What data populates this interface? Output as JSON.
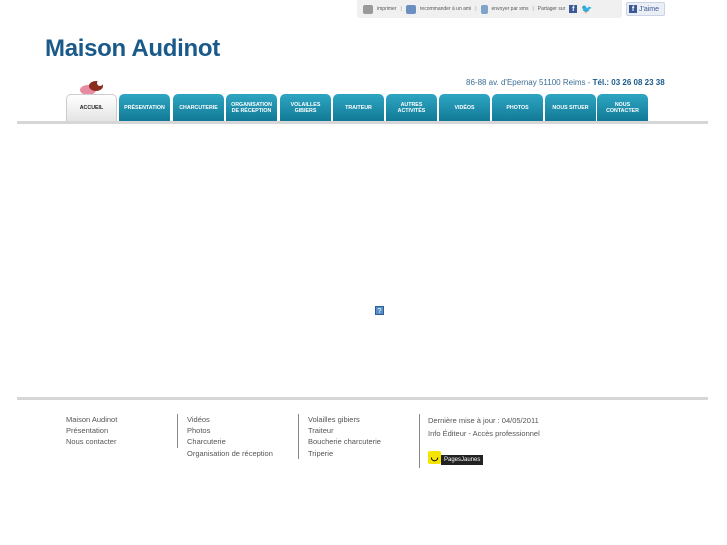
{
  "toolbar": {
    "print": "imprimer",
    "recommend": "recommander à un ami",
    "sms": "envoyer par sms",
    "share": "Partager sur",
    "like": "J'aime"
  },
  "header": {
    "title": "Maison Audinot",
    "address": "86-88 av. d'Epernay 51100 Reims  - ",
    "phone": "Tél.: 03 26 08 23 38"
  },
  "nav": {
    "tabs": [
      "ACCUEIL",
      "PRÉSENTATION",
      "CHARCUTERIE",
      "ORGANISATION\nDE RÉCEPTION",
      "VOLAILLES\nGIBIERS",
      "TRAITEUR",
      "AUTRES\nACTIVITÉS",
      "VIDÉOS",
      "PHOTOS",
      "NOUS SITUER",
      "NOUS\nCONTACTER"
    ],
    "active": "ACCUEIL"
  },
  "main": {
    "broken_image": "?"
  },
  "footer": {
    "col1": [
      "Maison Audinot",
      "Présentation",
      "Nous contacter"
    ],
    "col2": [
      "Vidéos",
      "Photos",
      "Charcuterie",
      "Organisation de réception"
    ],
    "col3": [
      "Volailles gibiers",
      "Traiteur",
      "Boucherie charcuterie",
      "Triperie"
    ],
    "updated": "Dernière mise à jour : 04/05/2011",
    "info_editeur": "Info Éditeur",
    "dash": " - ",
    "acces_pro": "Accès professionnel",
    "pagesjaunes": "PagesJaunes"
  }
}
